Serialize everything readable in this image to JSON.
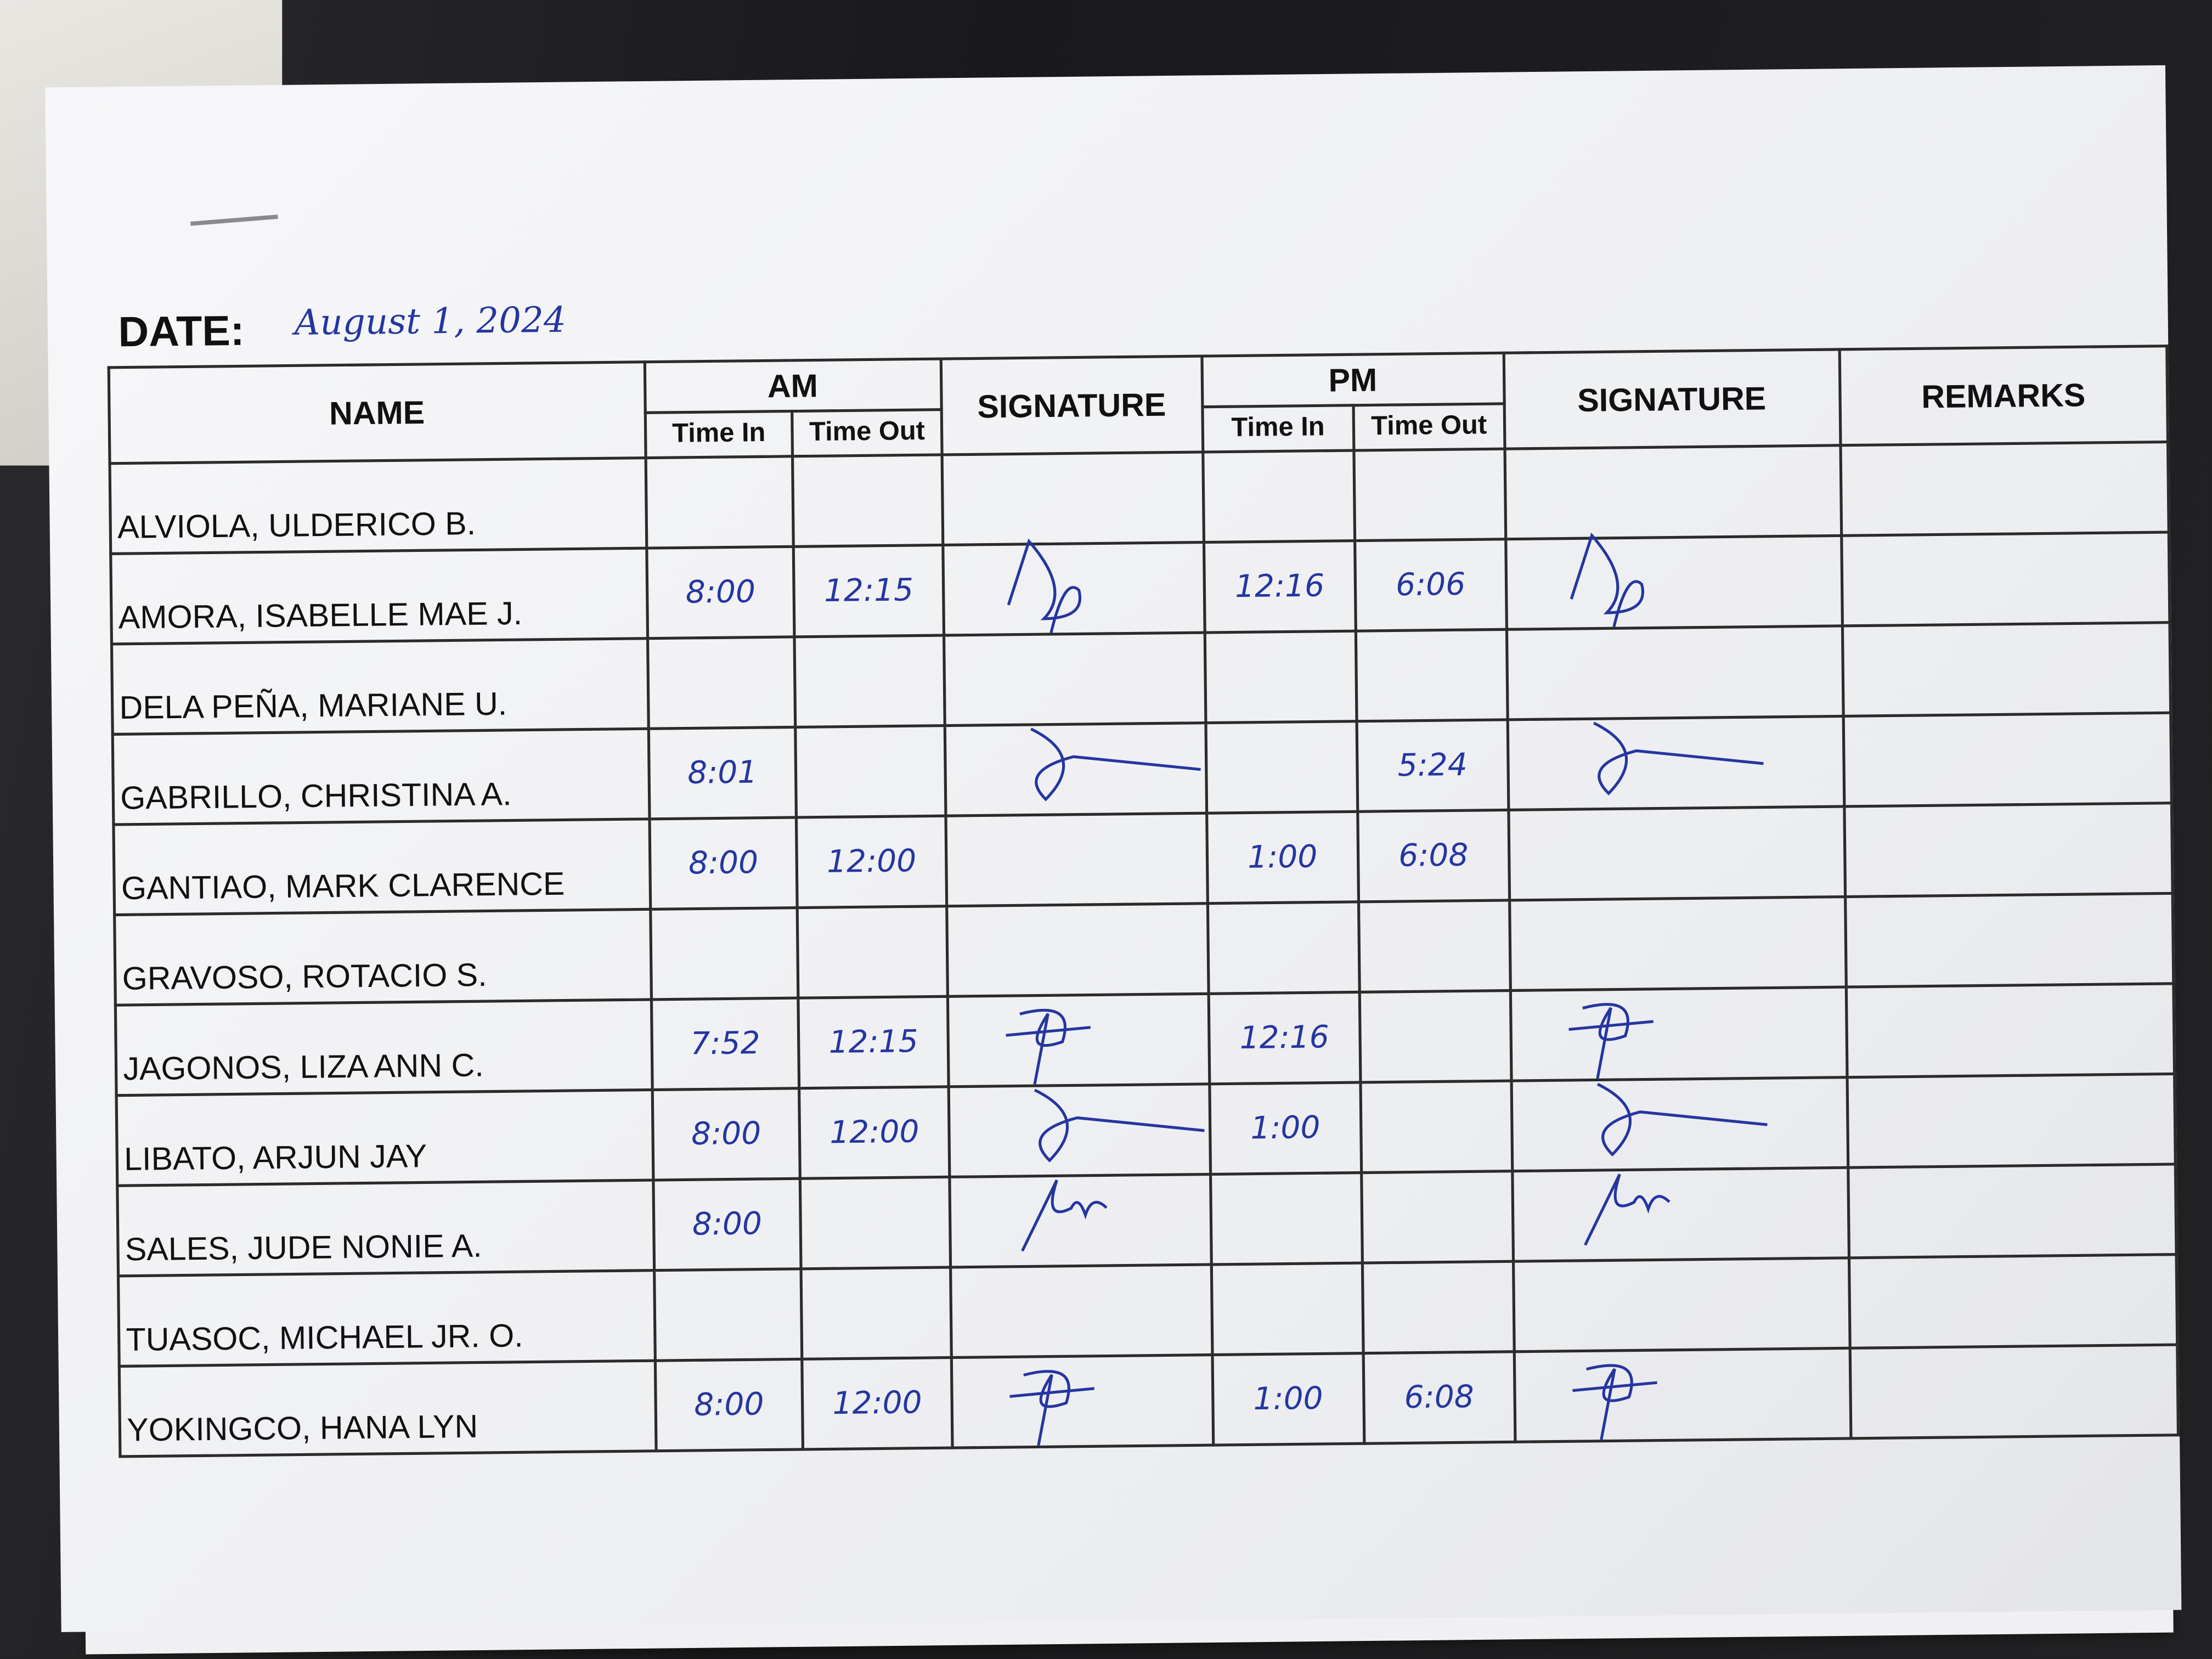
{
  "form": {
    "date_label": "DATE:",
    "date_value": "August 1, 2024",
    "headers": {
      "name": "NAME",
      "am": "AM",
      "signature": "SIGNATURE",
      "pm": "PM",
      "remarks": "REMARKS",
      "time_in": "Time In",
      "time_out": "Time Out"
    },
    "rows": [
      {
        "name": "ALVIOLA, ULDERICO B.",
        "am_in": "",
        "am_out": "",
        "pm_in": "",
        "pm_out": "",
        "signed": false
      },
      {
        "name": "AMORA, ISABELLE MAE J.",
        "am_in": "8:00",
        "am_out": "12:15",
        "pm_in": "12:16",
        "pm_out": "6:06",
        "signed": true
      },
      {
        "name": "DELA PEÑA, MARIANE U.",
        "am_in": "",
        "am_out": "",
        "pm_in": "",
        "pm_out": "",
        "signed": false
      },
      {
        "name": "GABRILLO, CHRISTINA A.",
        "am_in": "8:01",
        "am_out": "",
        "pm_in": "",
        "pm_out": "5:24",
        "signed": true
      },
      {
        "name": "GANTIAO, MARK CLARENCE",
        "am_in": "8:00",
        "am_out": "12:00",
        "pm_in": "1:00",
        "pm_out": "6:08",
        "signed": false
      },
      {
        "name": "GRAVOSO, ROTACIO S.",
        "am_in": "",
        "am_out": "",
        "pm_in": "",
        "pm_out": "",
        "signed": false
      },
      {
        "name": "JAGONOS, LIZA ANN C.",
        "am_in": "7:52",
        "am_out": "12:15",
        "pm_in": "12:16",
        "pm_out": "",
        "signed": true
      },
      {
        "name": "LIBATO, ARJUN JAY",
        "am_in": "8:00",
        "am_out": "12:00",
        "pm_in": "1:00",
        "pm_out": "",
        "signed": true
      },
      {
        "name": "SALES, JUDE NONIE A.",
        "am_in": "8:00",
        "am_out": "",
        "pm_in": "",
        "pm_out": "",
        "signed": true
      },
      {
        "name": "TUASOC, MICHAEL JR. O.",
        "am_in": "",
        "am_out": "",
        "pm_in": "",
        "pm_out": "",
        "signed": false
      },
      {
        "name": "YOKINGCO, HANA LYN",
        "am_in": "8:00",
        "am_out": "12:00",
        "pm_in": "1:00",
        "pm_out": "6:08",
        "signed": true
      }
    ],
    "ink_color": "#2536a0"
  }
}
